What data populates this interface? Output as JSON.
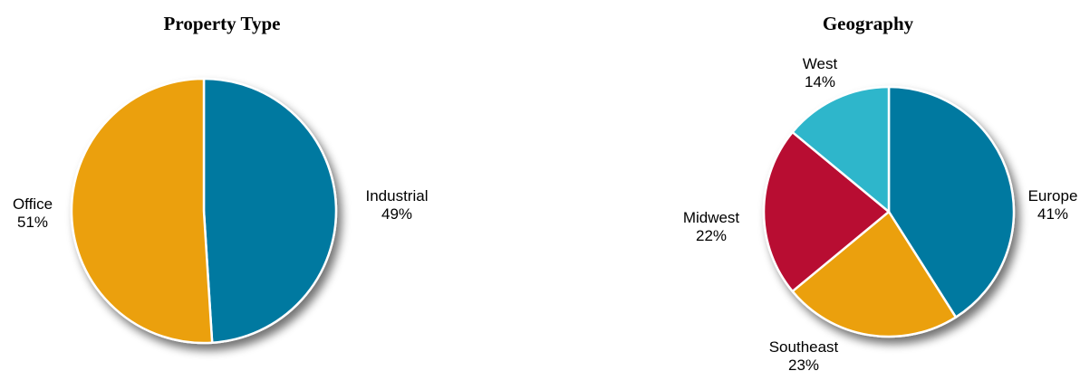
{
  "chart_data": [
    {
      "type": "pie",
      "title": "Property Type",
      "slices": [
        {
          "label": "Industrial",
          "value": 49,
          "display": "49%",
          "color": "#0379a0"
        },
        {
          "label": "Office",
          "value": 51,
          "display": "51%",
          "color": "#eba008"
        }
      ]
    },
    {
      "type": "pie",
      "title": "Geography",
      "slices": [
        {
          "label": "Europe",
          "value": 41,
          "display": "41%",
          "color": "#0379a0"
        },
        {
          "label": "Southeast",
          "value": 23,
          "display": "23%",
          "color": "#eba008"
        },
        {
          "label": "Midwest",
          "value": 22,
          "display": "22%",
          "color": "#b80d31"
        },
        {
          "label": "West",
          "value": 14,
          "display": "14%",
          "color": "#2db6cb"
        }
      ]
    }
  ]
}
